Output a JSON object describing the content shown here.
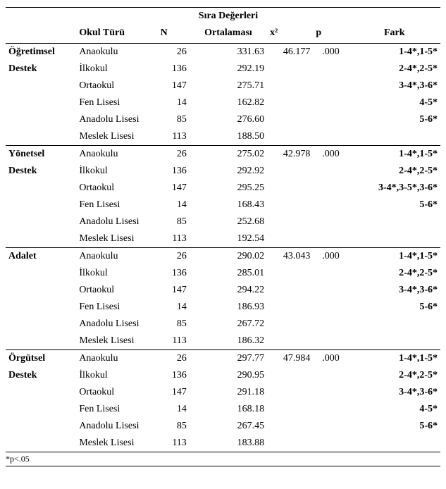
{
  "header": {
    "title_line1": "Sıra Değerleri",
    "col_category": "",
    "col_okul": "Okul Türü",
    "col_n": "N",
    "col_ort": "Ortalaması",
    "col_chi": "x²",
    "col_p": "p",
    "col_fark": "Fark"
  },
  "groups": [
    {
      "category_lines": [
        "Öğretimsel",
        "Destek"
      ],
      "chi": "46.177",
      "p": ".000",
      "rows": [
        {
          "okul": "Anaokulu",
          "n": "26",
          "ort": "331.63",
          "fark": "1-4*,1-5*"
        },
        {
          "okul": "İlkokul",
          "n": "136",
          "ort": "292.19",
          "fark": "2-4*,2-5*"
        },
        {
          "okul": "Ortaokul",
          "n": "147",
          "ort": "275.71",
          "fark": "3-4*,3-6*"
        },
        {
          "okul": "Fen Lisesi",
          "n": "14",
          "ort": "162.82",
          "fark": "4-5*"
        },
        {
          "okul": "Anadolu Lisesi",
          "n": "85",
          "ort": "276.60",
          "fark": "5-6*"
        },
        {
          "okul": "Meslek Lisesi",
          "n": "113",
          "ort": "188.50",
          "fark": ""
        }
      ]
    },
    {
      "category_lines": [
        "Yönetsel",
        "Destek"
      ],
      "chi": "42.978",
      "p": ".000",
      "rows": [
        {
          "okul": "Anaokulu",
          "n": "26",
          "ort": "275.02",
          "fark": "1-4*,1-5*"
        },
        {
          "okul": "İlkokul",
          "n": "136",
          "ort": "292.92",
          "fark": "2-4*,2-5*"
        },
        {
          "okul": "Ortaokul",
          "n": "147",
          "ort": "295.25",
          "fark": "3-4*,3-5*,3-6*"
        },
        {
          "okul": "Fen Lisesi",
          "n": "14",
          "ort": "168.43",
          "fark": "5-6*"
        },
        {
          "okul": "Anadolu Lisesi",
          "n": "85",
          "ort": "252.68",
          "fark": ""
        },
        {
          "okul": "Meslek Lisesi",
          "n": "113",
          "ort": "192.54",
          "fark": ""
        }
      ]
    },
    {
      "category_lines": [
        "Adalet"
      ],
      "chi": "43.043",
      "p": ".000",
      "rows": [
        {
          "okul": "Anaokulu",
          "n": "26",
          "ort": "290.02",
          "fark": "1-4*,1-5*"
        },
        {
          "okul": "İlkokul",
          "n": "136",
          "ort": "285.01",
          "fark": "2-4*,2-5*"
        },
        {
          "okul": "Ortaokul",
          "n": "147",
          "ort": "294.22",
          "fark": "3-4*,3-6*"
        },
        {
          "okul": "Fen Lisesi",
          "n": "14",
          "ort": "186.93",
          "fark": "5-6*"
        },
        {
          "okul": "Anadolu Lisesi",
          "n": "85",
          "ort": "267.72",
          "fark": ""
        },
        {
          "okul": "Meslek Lisesi",
          "n": "113",
          "ort": "186.32",
          "fark": ""
        }
      ]
    },
    {
      "category_lines": [
        "Örgütsel",
        "Destek"
      ],
      "chi": "47.984",
      "p": ".000",
      "rows": [
        {
          "okul": "Anaokulu",
          "n": "26",
          "ort": "297.77",
          "fark": "1-4*,1-5*"
        },
        {
          "okul": "İlkokul",
          "n": "136",
          "ort": "290.95",
          "fark": "2-4*,2-5*"
        },
        {
          "okul": "Ortaokul",
          "n": "147",
          "ort": "291.18",
          "fark": "3-4*,3-6*"
        },
        {
          "okul": "Fen Lisesi",
          "n": "14",
          "ort": "168.18",
          "fark": "4-5*"
        },
        {
          "okul": "Anadolu Lisesi",
          "n": "85",
          "ort": "267.45",
          "fark": "5-6*"
        },
        {
          "okul": "Meslek Lisesi",
          "n": "113",
          "ort": "183.88",
          "fark": ""
        }
      ]
    }
  ],
  "footnote": "*p<.05"
}
